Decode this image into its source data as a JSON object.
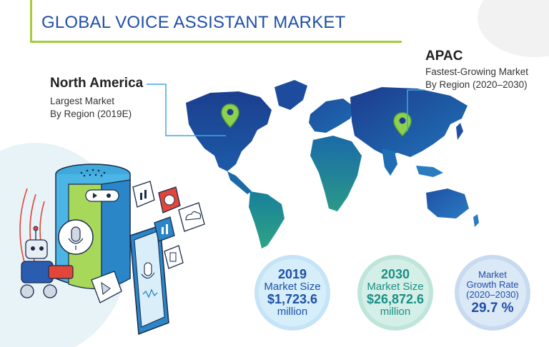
{
  "header": {
    "title": "GLOBAL VOICE ASSISTANT MARKET"
  },
  "callouts": {
    "north_america": {
      "title": "North America",
      "line1": "Largest Market",
      "line2": "By Region (2019E)"
    },
    "apac": {
      "title": "APAC",
      "line1": "Fastest-Growing Market",
      "line2": "By Region (2020–2030)"
    }
  },
  "stats": {
    "y2019": {
      "year": "2019",
      "label": "Market Size",
      "value": "$1,723.6",
      "unit": "million"
    },
    "y2030": {
      "year": "2030",
      "label": "Market Size",
      "value": "$26,872.6",
      "unit": "million"
    },
    "growth": {
      "line1": "Market",
      "line2": "Growth Rate",
      "line3": "(2020–2030)",
      "value": "29.7 %"
    }
  },
  "colors": {
    "title_blue": "#1f4fa7",
    "accent_green": "#a5cc3a",
    "teal": "#1a8f86",
    "pin_green": "#8fd14f"
  },
  "icons": [
    "location-pin-icon",
    "smart-speaker-icon",
    "smartphone-icon",
    "microphone-icon",
    "robot-icon",
    "chart-icon",
    "cloud-icon"
  ]
}
